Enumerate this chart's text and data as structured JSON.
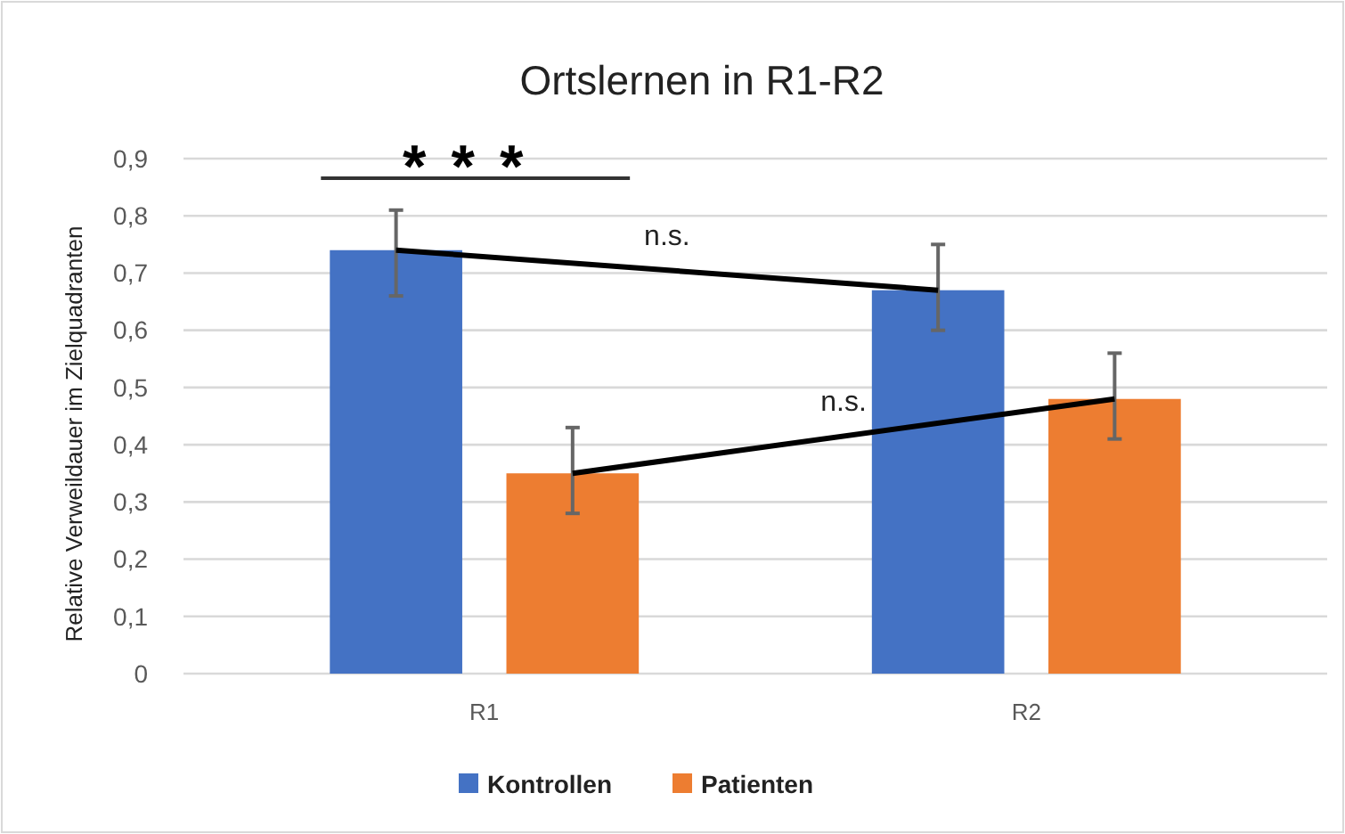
{
  "chart_data": {
    "type": "bar",
    "title": "Ortslernen in R1-R2",
    "ylabel": "Relative Verweildauer im Zielquadranten",
    "categories": [
      "R1",
      "R2"
    ],
    "series": [
      {
        "name": "Kontrollen",
        "color": "#4472c4",
        "values": [
          0.74,
          0.67
        ],
        "errors": [
          [
            0.66,
            0.81
          ],
          [
            0.6,
            0.75
          ]
        ]
      },
      {
        "name": "Patienten",
        "color": "#ed7d31",
        "values": [
          0.35,
          0.48
        ],
        "errors": [
          [
            0.28,
            0.43
          ],
          [
            0.41,
            0.56
          ]
        ]
      }
    ],
    "ylim": [
      0,
      0.9
    ],
    "yticks": [
      0,
      {
        "value": 0.1,
        "label": "0,1"
      },
      {
        "value": 0.2,
        "label": "0,2"
      },
      {
        "value": 0.3,
        "label": "0,3"
      },
      {
        "value": 0.4,
        "label": "0,4"
      },
      {
        "value": 0.5,
        "label": "0,5"
      },
      {
        "value": 0.6,
        "label": "0,6"
      },
      {
        "value": 0.7,
        "label": "0,7"
      },
      {
        "value": 0.8,
        "label": "0,8"
      },
      {
        "value": 0.9,
        "label": "0,9"
      }
    ],
    "grid": "y",
    "legend": "bottom",
    "annotations": [
      "***",
      "n.s.",
      "n.s."
    ]
  }
}
